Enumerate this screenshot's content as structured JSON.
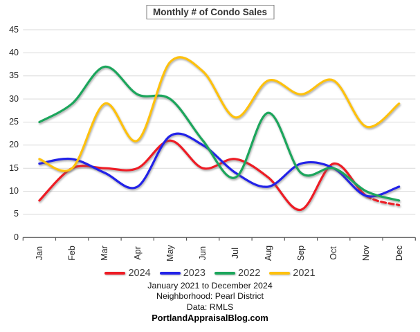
{
  "title": "Monthly # of Condo Sales",
  "chart_data": {
    "type": "line",
    "title": "Monthly # of Condo Sales",
    "categories": [
      "Jan",
      "Feb",
      "Mar",
      "Apr",
      "May",
      "Jun",
      "Jul",
      "Aug",
      "Sep",
      "Oct",
      "Nov",
      "Dec"
    ],
    "series": [
      {
        "name": "2024",
        "color": "#ee1c25",
        "values": [
          8,
          15,
          15,
          15,
          21,
          15,
          17,
          13,
          6,
          16,
          9,
          7
        ],
        "dashed_from_index": 10
      },
      {
        "name": "2023",
        "color": "#2222e8",
        "values": [
          16,
          17,
          14,
          11,
          22,
          20,
          14,
          11,
          16,
          15,
          9,
          11
        ]
      },
      {
        "name": "2022",
        "color": "#1ca65c",
        "values": [
          25,
          29,
          37,
          31,
          30,
          21,
          13,
          27,
          14,
          15,
          10,
          8
        ]
      },
      {
        "name": "2021",
        "color": "#fec10d",
        "values": [
          17,
          15,
          29,
          21,
          38,
          36,
          26,
          34,
          31,
          34,
          24,
          29
        ]
      }
    ],
    "ylim": [
      0,
      45
    ],
    "y_tick_step": 5,
    "grid": true,
    "smooth_lines": true,
    "legend_position": "bottom",
    "legend_order": [
      "2024",
      "2023",
      "2022",
      "2021"
    ]
  },
  "footer": {
    "date_range": "January 2021 to December 2024",
    "neighborhood": "Neighborhood: Pearl District",
    "data_source": "Data: RMLS",
    "website": "PortlandAppraisalBlog.com"
  }
}
